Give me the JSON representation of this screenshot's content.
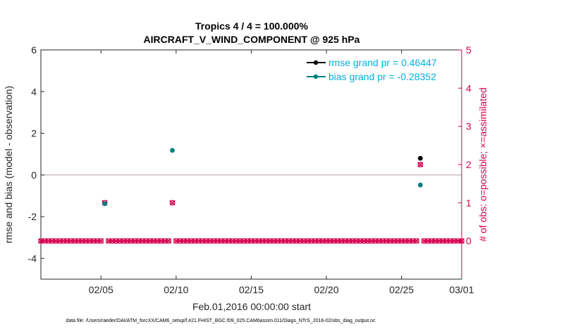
{
  "chart_data": {
    "type": "scatter",
    "title": "Tropics 4 / 4 = 100.000%",
    "subtitle": "AIRCRAFT_V_WIND_COMPONENT @ 925 hPa",
    "xlabel": "Feb.01,2016 00:00:00 start",
    "ylabel": "rmse and bias (model - observation)",
    "ylabel_right": "# of obs: o=possible; ×=assimilated",
    "xlim": [
      1,
      29
    ],
    "ylim": [
      -5,
      6
    ],
    "ylim_right": [
      -1,
      5
    ],
    "x_ticks": [
      {
        "x": 5,
        "label": "02/05"
      },
      {
        "x": 10,
        "label": "02/10"
      },
      {
        "x": 15,
        "label": "02/15"
      },
      {
        "x": 20,
        "label": "02/20"
      },
      {
        "x": 25,
        "label": "02/25"
      },
      {
        "x": 29,
        "label": "03/01"
      }
    ],
    "y_ticks": [
      6,
      4,
      2,
      0,
      -2,
      -4
    ],
    "y_ticks_right": [
      5,
      4,
      3,
      2,
      1,
      0
    ],
    "zero_line": 0,
    "series": [
      {
        "name": "rmse grand pr = 0.46447",
        "color": "#000000",
        "points": [
          {
            "x": 26.25,
            "y": 0.8
          }
        ]
      },
      {
        "name": "bias grand pr = -0.28352",
        "color": "#008080",
        "points": [
          {
            "x": 5.25,
            "y": -1.38
          },
          {
            "x": 9.75,
            "y": 1.18
          },
          {
            "x": 26.25,
            "y": -0.48
          }
        ]
      }
    ],
    "obs_counts": {
      "color": "#d6004f",
      "start": 1.0,
      "step": 0.25,
      "end": 29.0,
      "nonzero": [
        {
          "x": 5.25,
          "count": 1
        },
        {
          "x": 9.75,
          "count": 1
        },
        {
          "x": 26.25,
          "count": 2
        }
      ]
    },
    "legend_position": "top-right"
  },
  "footer": "data file: /Users/raeder/DAI/ATM_forcXX/CAM6_setup/f.e21.FHIST_BGC.f09_025.CAM6assim.011/Diags_NTrS_2016-02/obs_diag_output.nc"
}
